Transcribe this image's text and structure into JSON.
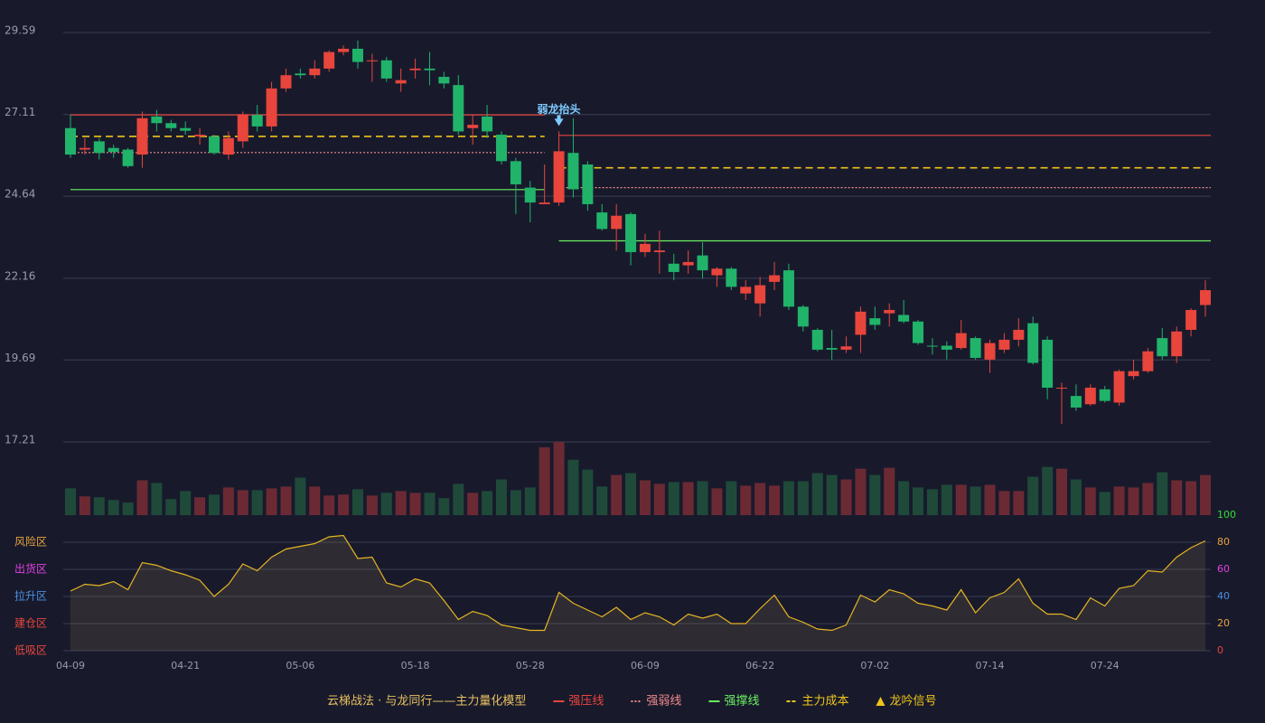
{
  "chart_data": {
    "type": "candlestick",
    "model_name": "云梯战法 · 与龙同行——主力量化模型",
    "categories": [
      "04-09",
      null,
      null,
      null,
      null,
      null,
      null,
      null,
      "04-21",
      null,
      null,
      null,
      null,
      null,
      null,
      null,
      "05-06",
      null,
      null,
      null,
      null,
      null,
      null,
      null,
      "05-18",
      null,
      null,
      null,
      null,
      null,
      null,
      null,
      "05-28",
      null,
      null,
      null,
      null,
      null,
      null,
      null,
      "06-09",
      null,
      null,
      null,
      null,
      null,
      null,
      null,
      "06-22",
      null,
      null,
      null,
      null,
      null,
      null,
      null,
      "07-02",
      null,
      null,
      null,
      null,
      null,
      null,
      null,
      "07-14",
      null,
      null,
      null,
      null,
      null,
      null,
      null,
      "07-24",
      null,
      null,
      null,
      null,
      null,
      null,
      null
    ],
    "ylim": [
      17.21,
      29.59
    ],
    "yticks": [
      17.21,
      19.69,
      22.16,
      24.64,
      27.11,
      29.59
    ],
    "up_color": "#e8453c",
    "down_color": "#21b36a",
    "volume_up_color": "#6b2a33",
    "volume_down_color": "#1f4a3a",
    "candles": {
      "open": [
        26.7,
        26.05,
        26.3,
        26.1,
        26.05,
        25.9,
        27.05,
        26.85,
        26.7,
        26.45,
        26.45,
        25.9,
        26.3,
        27.1,
        26.75,
        27.9,
        28.35,
        28.3,
        28.5,
        29.0,
        29.1,
        28.72,
        28.75,
        28.05,
        28.45,
        28.5,
        28.25,
        28.0,
        26.7,
        27.05,
        26.5,
        25.7,
        24.9,
        24.4,
        24.45,
        25.95,
        25.6,
        24.15,
        23.65,
        24.1,
        22.95,
        22.95,
        22.6,
        22.55,
        22.85,
        22.25,
        22.45,
        21.7,
        21.4,
        22.05,
        22.4,
        21.3,
        20.6,
        20.05,
        20.0,
        20.45,
        20.95,
        21.1,
        21.05,
        20.85,
        20.12,
        20.12,
        20.05,
        20.35,
        19.7,
        20.0,
        20.3,
        20.8,
        20.3,
        18.85,
        18.6,
        18.35,
        18.8,
        18.4,
        19.2,
        19.35,
        20.35,
        19.8,
        20.6,
        21.35
      ],
      "close": [
        25.9,
        26.1,
        25.95,
        25.98,
        25.55,
        27.0,
        26.85,
        26.7,
        26.62,
        26.5,
        25.95,
        26.4,
        27.12,
        26.75,
        27.9,
        28.3,
        28.3,
        28.5,
        29.0,
        29.1,
        28.7,
        28.75,
        28.2,
        28.15,
        28.5,
        28.45,
        28.05,
        26.6,
        26.8,
        26.6,
        25.7,
        25.0,
        24.45,
        24.45,
        26.0,
        24.85,
        24.4,
        23.65,
        24.05,
        22.95,
        23.2,
        23.0,
        22.35,
        22.65,
        22.4,
        22.45,
        21.9,
        21.9,
        21.95,
        22.25,
        21.3,
        20.7,
        20.0,
        20.0,
        20.1,
        21.15,
        20.75,
        21.2,
        20.85,
        20.2,
        20.1,
        20.0,
        20.5,
        19.75,
        20.2,
        20.3,
        20.6,
        19.6,
        18.85,
        18.85,
        18.25,
        18.85,
        18.45,
        19.35,
        19.35,
        19.95,
        19.8,
        20.55,
        21.2,
        21.8
      ],
      "low": [
        25.8,
        25.9,
        25.75,
        25.8,
        25.5,
        25.5,
        26.6,
        26.6,
        26.5,
        26.2,
        25.9,
        25.75,
        26.1,
        26.6,
        26.6,
        27.8,
        28.2,
        28.2,
        28.4,
        28.9,
        28.5,
        28.1,
        28.1,
        27.8,
        28.2,
        28.0,
        27.9,
        26.5,
        26.2,
        26.4,
        25.6,
        24.1,
        23.85,
        24.4,
        24.35,
        24.6,
        24.2,
        23.6,
        23.0,
        22.55,
        22.8,
        22.3,
        22.1,
        22.3,
        22.15,
        21.9,
        21.8,
        21.5,
        21.0,
        21.8,
        21.2,
        20.55,
        19.95,
        19.7,
        19.9,
        19.9,
        20.6,
        20.7,
        20.8,
        20.15,
        19.85,
        19.7,
        20.0,
        19.7,
        19.3,
        19.9,
        20.1,
        19.55,
        18.5,
        17.75,
        18.15,
        18.3,
        18.4,
        18.3,
        19.1,
        19.3,
        19.7,
        19.6,
        20.4,
        21.0
      ],
      "high": [
        27.1,
        26.4,
        26.4,
        26.2,
        26.1,
        27.2,
        27.25,
        26.95,
        26.9,
        26.7,
        26.5,
        26.6,
        27.2,
        27.4,
        28.1,
        28.5,
        28.5,
        28.75,
        29.05,
        29.2,
        29.35,
        28.95,
        28.85,
        28.5,
        28.8,
        29.0,
        28.4,
        28.3,
        27.1,
        27.4,
        26.6,
        25.8,
        25.1,
        25.6,
        26.6,
        27.0,
        25.7,
        24.4,
        24.4,
        24.15,
        23.5,
        23.6,
        22.9,
        23.0,
        23.25,
        22.5,
        22.5,
        22.1,
        22.2,
        22.65,
        22.6,
        21.35,
        20.65,
        20.6,
        20.4,
        21.3,
        21.3,
        21.4,
        21.5,
        20.9,
        20.35,
        20.25,
        20.9,
        20.4,
        20.3,
        20.5,
        20.95,
        21.0,
        20.4,
        19.0,
        18.95,
        18.95,
        18.9,
        19.4,
        19.7,
        20.05,
        20.65,
        20.7,
        21.25,
        22.1
      ]
    },
    "volume": [
      30,
      21,
      20,
      17,
      14,
      39,
      36,
      18,
      27,
      20,
      23,
      31,
      28,
      28,
      30,
      32,
      42,
      32,
      22,
      23,
      29,
      22,
      25,
      27,
      25,
      25,
      19,
      35,
      25,
      27,
      40,
      28,
      31,
      76,
      82,
      62,
      51,
      32,
      45,
      47,
      39,
      35,
      37,
      37,
      38,
      30,
      38,
      33,
      36,
      33,
      38,
      38,
      47,
      45,
      40,
      52,
      45,
      53,
      38,
      31,
      29,
      34,
      34,
      32,
      34,
      27,
      27,
      43,
      54,
      52,
      40,
      31,
      26,
      32,
      31,
      36,
      48,
      39,
      38,
      45
    ],
    "levels": [
      {
        "name": "强压线",
        "color": "#e8453c",
        "style": "solid",
        "segments": [
          {
            "from": 0,
            "to": 33,
            "value": 27.1
          },
          {
            "from": 34,
            "to": 79,
            "value": 26.48
          }
        ]
      },
      {
        "name": "强弱线",
        "color": "#f08a8a",
        "style": "dotted",
        "segments": [
          {
            "from": 0,
            "to": 33,
            "value": 25.96
          },
          {
            "from": 34,
            "to": 79,
            "value": 24.9
          }
        ]
      },
      {
        "name": "强撑线",
        "color": "#6cf060",
        "style": "solid",
        "segments": [
          {
            "from": 0,
            "to": 33,
            "value": 24.84
          },
          {
            "from": 34,
            "to": 79,
            "value": 23.29
          }
        ]
      },
      {
        "name": "主力成本",
        "color": "#f0c419",
        "style": "dashed",
        "segments": [
          {
            "from": 0,
            "to": 33,
            "value": 26.45
          },
          {
            "from": 34,
            "to": 79,
            "value": 25.5
          }
        ]
      }
    ],
    "signal": {
      "name": "龙吟信号",
      "color": "#f0c419"
    },
    "annotation": {
      "text": "弱龙抬头",
      "index": 34,
      "color": "#7ecbff"
    },
    "oscillator": {
      "color": "#e6b422",
      "ylim": [
        0,
        100
      ],
      "yticks": [
        0,
        20,
        40,
        60,
        80,
        100
      ],
      "ytick_colors": [
        "#e8453c",
        "#e8a33c",
        "#4a90e2",
        "#e040e0",
        "#e8a33c",
        "#33dd33"
      ],
      "zones": [
        {
          "label": "风险区",
          "value": 80,
          "color": "#e8a33c"
        },
        {
          "label": "出货区",
          "value": 60,
          "color": "#e040e0"
        },
        {
          "label": "拉升区",
          "value": 40,
          "color": "#4a90e2"
        },
        {
          "label": "建仓区",
          "value": 20,
          "color": "#e8453c"
        },
        {
          "label": "低吸区",
          "value": 0,
          "color": "#e8453c"
        }
      ],
      "values": [
        44,
        49,
        48,
        51,
        45,
        65,
        63,
        59,
        56,
        52,
        40,
        49,
        64,
        59,
        69,
        75,
        77,
        79,
        84,
        85,
        68,
        69,
        50,
        47,
        53,
        50,
        37,
        23,
        29,
        26,
        19,
        17,
        15,
        15,
        43,
        35,
        30,
        25,
        32,
        23,
        28,
        25,
        19,
        27,
        24,
        27,
        20,
        20,
        31,
        41,
        25,
        21,
        16,
        15,
        19,
        41,
        36,
        45,
        42,
        35,
        33,
        30,
        45,
        28,
        39,
        43,
        53,
        35,
        27,
        27,
        23,
        39,
        33,
        46,
        48,
        59,
        58,
        69,
        76,
        81
      ]
    }
  }
}
